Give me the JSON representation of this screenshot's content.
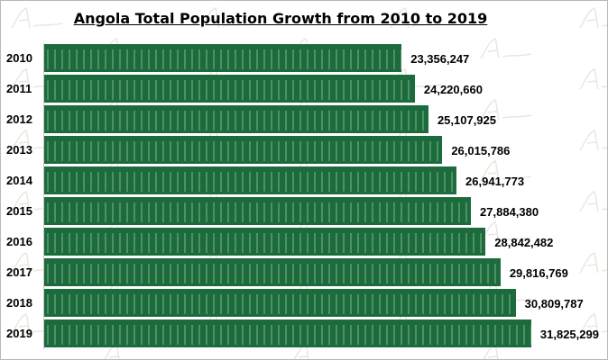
{
  "chart_data": {
    "type": "bar",
    "orientation": "horizontal",
    "title": "Angola Total Population Growth from 2010 to 2019",
    "categories": [
      "2010",
      "2011",
      "2012",
      "2013",
      "2014",
      "2015",
      "2016",
      "2017",
      "2018",
      "2019"
    ],
    "values": [
      23356247,
      24220660,
      25107925,
      26015786,
      26941773,
      27884380,
      28842482,
      29816769,
      30809787,
      31825299
    ],
    "labels": [
      "23,356,247",
      "24,220,660",
      "25,107,925",
      "26,015,786",
      "26,941,773",
      "27,884,380",
      "28,842,482",
      "29,816,769",
      "30,809,787",
      "31,825,299"
    ],
    "xlim": [
      0,
      33600000
    ],
    "grid": false,
    "legend": "none",
    "bar_color": "#1c6b3c",
    "watermark": "Afrolovent"
  }
}
